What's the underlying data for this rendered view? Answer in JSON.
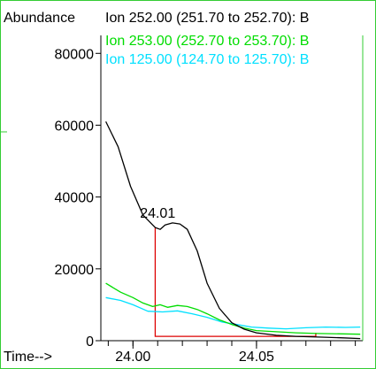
{
  "chart_data": {
    "type": "line",
    "ylabel": "Abundance",
    "xlabel": "Time-->",
    "xlim": [
      23.987,
      24.093
    ],
    "ylim": [
      0,
      85000
    ],
    "x_ticks": [
      24.0,
      24.05
    ],
    "x_tick_labels": [
      "24.00",
      "24.05"
    ],
    "y_ticks": [
      0,
      20000,
      40000,
      60000,
      80000
    ],
    "y_tick_labels": [
      "0",
      "20000",
      "40000",
      "60000",
      "80000"
    ],
    "grid": false,
    "legend_position": "top",
    "series": [
      {
        "name": "Ion 252.00 (251.70 to 252.70): B",
        "color": "#000000",
        "x": [
          23.989,
          23.994,
          23.999,
          24.004,
          24.009,
          24.011,
          24.013,
          24.016,
          24.019,
          24.022,
          24.026,
          24.03,
          24.035,
          24.04,
          24.045,
          24.05,
          24.058,
          24.066,
          24.075,
          24.085,
          24.092
        ],
        "y": [
          61000,
          54000,
          43000,
          35000,
          31500,
          31000,
          32200,
          32800,
          32500,
          31000,
          25000,
          16000,
          9000,
          5000,
          3200,
          2200,
          1500,
          1200,
          1000,
          800,
          600
        ]
      },
      {
        "name": "Ion 253.00 (252.70 to 253.70): B",
        "color": "#00dd00",
        "x": [
          23.989,
          23.995,
          24.0,
          24.004,
          24.008,
          24.011,
          24.014,
          24.018,
          24.022,
          24.026,
          24.03,
          24.035,
          24.04,
          24.045,
          24.05,
          24.058,
          24.066,
          24.075,
          24.085,
          24.092
        ],
        "y": [
          16000,
          13500,
          12000,
          10500,
          9500,
          10000,
          9300,
          9800,
          9500,
          8700,
          7500,
          5800,
          4500,
          3500,
          2800,
          2500,
          2200,
          2000,
          1900,
          1800
        ]
      },
      {
        "name": "Ion 125.00 (124.70 to 125.70): B",
        "color": "#00e0ff",
        "x": [
          23.989,
          23.995,
          24.0,
          24.006,
          24.012,
          24.018,
          24.024,
          24.03,
          24.036,
          24.042,
          24.048,
          24.055,
          24.062,
          24.07,
          24.078,
          24.086,
          24.092
        ],
        "y": [
          12000,
          11200,
          10000,
          8200,
          8000,
          8300,
          7500,
          6500,
          5200,
          4500,
          3800,
          3500,
          3300,
          3600,
          3800,
          3700,
          3800
        ]
      }
    ],
    "annotations": [
      {
        "text": "24.01",
        "x": 24.01,
        "y": 33000
      }
    ],
    "integration": {
      "color": "#dd0000",
      "x_start": 24.009,
      "x_end": 24.074,
      "y_top": 31500,
      "y_base": 1200
    }
  }
}
